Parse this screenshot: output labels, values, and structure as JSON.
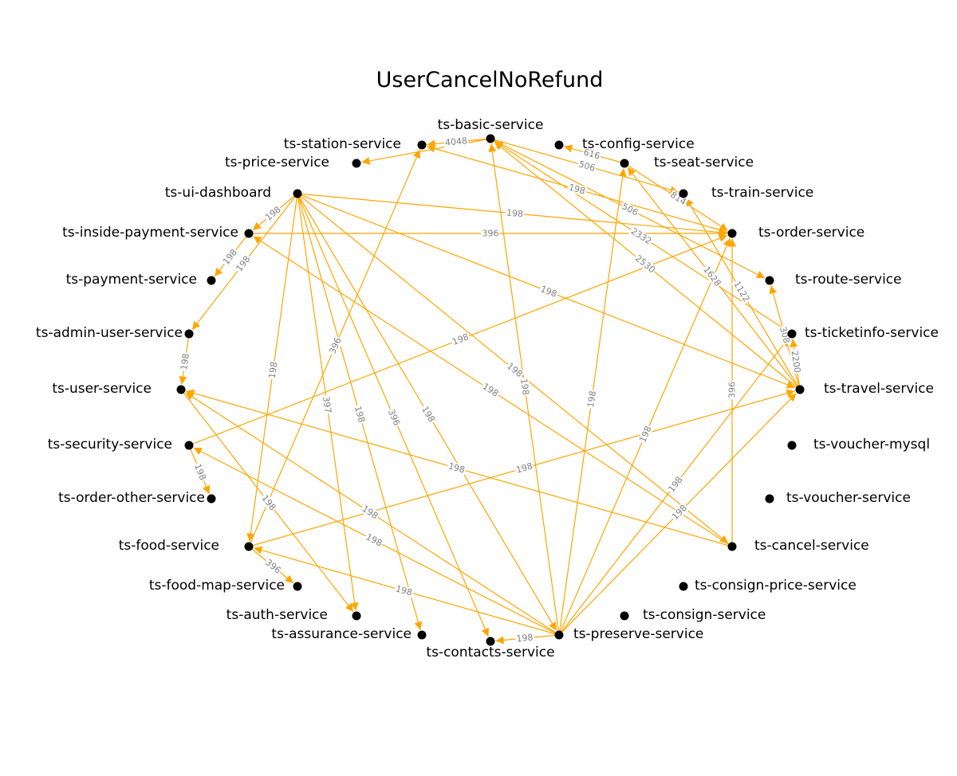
{
  "title": "UserCancelNoRefund",
  "colors": {
    "edge": "#FFA500",
    "node": "#000000",
    "edge_label": "#808080",
    "background": "#ffffff"
  },
  "nodes": [
    {
      "id": "basic",
      "label": "ts-basic-service"
    },
    {
      "id": "station",
      "label": "ts-station-service"
    },
    {
      "id": "config",
      "label": "ts-config-service"
    },
    {
      "id": "price",
      "label": "ts-price-service"
    },
    {
      "id": "seat",
      "label": "ts-seat-service"
    },
    {
      "id": "ui",
      "label": "ts-ui-dashboard"
    },
    {
      "id": "train",
      "label": "ts-train-service"
    },
    {
      "id": "insidepay",
      "label": "ts-inside-payment-service"
    },
    {
      "id": "order",
      "label": "ts-order-service"
    },
    {
      "id": "payment",
      "label": "ts-payment-service"
    },
    {
      "id": "route",
      "label": "ts-route-service"
    },
    {
      "id": "admin",
      "label": "ts-admin-user-service"
    },
    {
      "id": "ticketinfo",
      "label": "ts-ticketinfo-service"
    },
    {
      "id": "user",
      "label": "ts-user-service"
    },
    {
      "id": "travel",
      "label": "ts-travel-service"
    },
    {
      "id": "security",
      "label": "ts-security-service"
    },
    {
      "id": "vmysql",
      "label": "ts-voucher-mysql"
    },
    {
      "id": "orderother",
      "label": "ts-order-other-service"
    },
    {
      "id": "voucher",
      "label": "ts-voucher-service"
    },
    {
      "id": "food",
      "label": "ts-food-service"
    },
    {
      "id": "cancel",
      "label": "ts-cancel-service"
    },
    {
      "id": "foodmap",
      "label": "ts-food-map-service"
    },
    {
      "id": "consignprice",
      "label": "ts-consign-price-service"
    },
    {
      "id": "auth",
      "label": "ts-auth-service"
    },
    {
      "id": "consign",
      "label": "ts-consign-service"
    },
    {
      "id": "assurance",
      "label": "ts-assurance-service"
    },
    {
      "id": "preserve",
      "label": "ts-preserve-service"
    },
    {
      "id": "contacts",
      "label": "ts-contacts-service"
    }
  ],
  "edges": [
    {
      "source": "basic",
      "target": "station",
      "label": "4048"
    },
    {
      "source": "basic",
      "target": "price",
      "label": ""
    },
    {
      "source": "basic",
      "target": "train",
      "label": "506"
    },
    {
      "source": "basic",
      "target": "route",
      "label": "506"
    },
    {
      "source": "seat",
      "target": "config",
      "label": "616"
    },
    {
      "source": "seat",
      "target": "order",
      "label": "814"
    },
    {
      "source": "order",
      "target": "station",
      "label": "198"
    },
    {
      "source": "travel",
      "target": "basic",
      "label": "2530"
    },
    {
      "source": "travel",
      "target": "seat",
      "label": "1628"
    },
    {
      "source": "travel",
      "target": "train",
      "label": "1122"
    },
    {
      "source": "travel",
      "target": "route",
      "label": "308"
    },
    {
      "source": "travel",
      "target": "ticketinfo",
      "label": "2200"
    },
    {
      "source": "ticketinfo",
      "target": "basic",
      "label": "2332"
    },
    {
      "source": "ui",
      "target": "insidepay",
      "label": "198"
    },
    {
      "source": "ui",
      "target": "admin",
      "label": "198"
    },
    {
      "source": "ui",
      "target": "order",
      "label": "198"
    },
    {
      "source": "ui",
      "target": "travel",
      "label": "198"
    },
    {
      "source": "ui",
      "target": "cancel",
      "label": "198"
    },
    {
      "source": "ui",
      "target": "food",
      "label": "198"
    },
    {
      "source": "ui",
      "target": "auth",
      "label": "397"
    },
    {
      "source": "ui",
      "target": "assurance",
      "label": "198"
    },
    {
      "source": "ui",
      "target": "contacts",
      "label": "396"
    },
    {
      "source": "ui",
      "target": "preserve",
      "label": "198"
    },
    {
      "source": "insidepay",
      "target": "order",
      "label": "396"
    },
    {
      "source": "insidepay",
      "target": "payment",
      "label": "198"
    },
    {
      "source": "cancel",
      "target": "insidepay",
      "label": "198"
    },
    {
      "source": "cancel",
      "target": "order",
      "label": "396"
    },
    {
      "source": "cancel",
      "target": "user",
      "label": "198"
    },
    {
      "source": "admin",
      "target": "user",
      "label": "198"
    },
    {
      "source": "user",
      "target": "auth",
      "label": "198"
    },
    {
      "source": "security",
      "target": "orderother",
      "label": "198"
    },
    {
      "source": "security",
      "target": "order",
      "label": "198"
    },
    {
      "source": "food",
      "target": "station",
      "label": "396"
    },
    {
      "source": "food",
      "target": "foodmap",
      "label": "396"
    },
    {
      "source": "food",
      "target": "travel",
      "label": "198"
    },
    {
      "source": "preserve",
      "target": "contacts",
      "label": "198"
    },
    {
      "source": "preserve",
      "target": "food",
      "label": "198"
    },
    {
      "source": "preserve",
      "target": "user",
      "label": "198"
    },
    {
      "source": "preserve",
      "target": "security",
      "label": "198"
    },
    {
      "source": "preserve",
      "target": "order",
      "label": "198"
    },
    {
      "source": "preserve",
      "target": "travel",
      "label": "198"
    },
    {
      "source": "preserve",
      "target": "ticketinfo",
      "label": "198"
    },
    {
      "source": "preserve",
      "target": "seat",
      "label": "198"
    },
    {
      "source": "preserve",
      "target": "basic",
      "label": "198"
    }
  ]
}
